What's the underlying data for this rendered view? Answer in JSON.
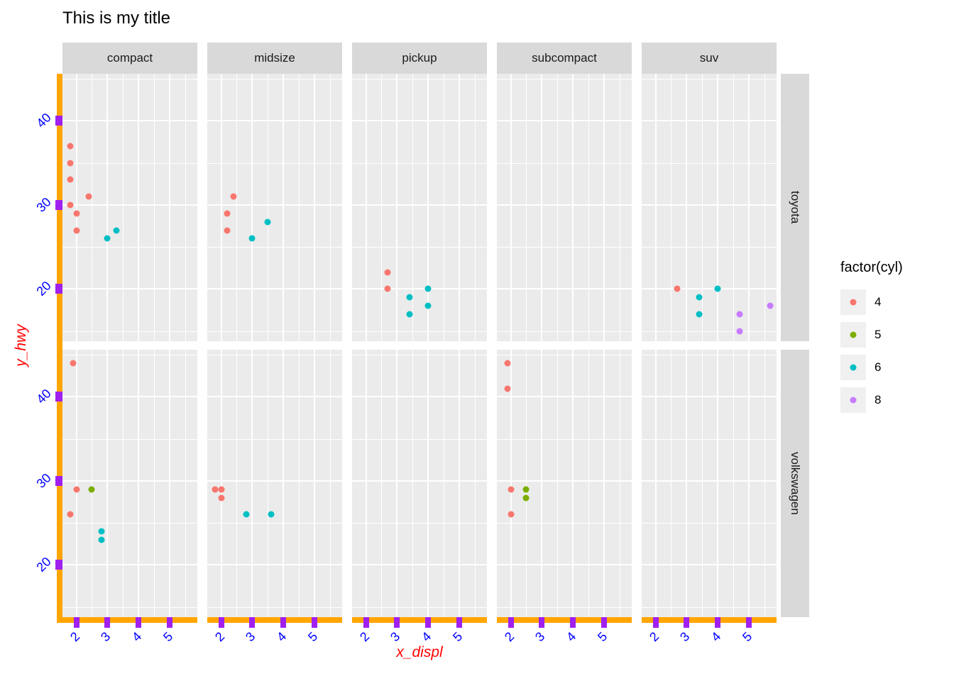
{
  "title": "This is my title",
  "axes": {
    "x_title": "x_displ",
    "y_title": "y_hwy",
    "x_tick_labels": [
      "2",
      "3",
      "4",
      "5"
    ],
    "y_tick_labels": [
      "20",
      "30",
      "40"
    ]
  },
  "legend": {
    "title": "factor(cyl)",
    "entries": [
      {
        "label": "4",
        "color": "#F8766D"
      },
      {
        "label": "5",
        "color": "#7CAE00"
      },
      {
        "label": "6",
        "color": "#00BFC4"
      },
      {
        "label": "8",
        "color": "#C77CFF"
      }
    ]
  },
  "style": {
    "axis_line_color": "#FFA500",
    "tick_color": "#A020F0",
    "tick_label_color": "#0000FF",
    "axis_title_color": "#FF0000",
    "panel_bg": "#EBEBEB",
    "strip_bg": "#D9D9D9",
    "key_bg": "#F0F0F0"
  },
  "chart_data": {
    "type": "scatter",
    "title": "This is my title",
    "xlabel": "x_displ",
    "ylabel": "y_hwy",
    "legend_title": "factor(cyl)",
    "facet_cols": [
      "compact",
      "midsize",
      "pickup",
      "subcompact",
      "suv"
    ],
    "facet_rows": [
      "toyota",
      "volkswagen"
    ],
    "x_domain": [
      1.55,
      5.9
    ],
    "y_domain": [
      13.8,
      45.6
    ],
    "x_major": [
      2,
      3,
      4,
      5
    ],
    "x_minor": [
      2.5,
      3.5,
      4.5,
      5.5
    ],
    "y_major": [
      20,
      30,
      40
    ],
    "y_minor": [
      15,
      25,
      35,
      45
    ],
    "points": [
      {
        "row": "toyota",
        "col": "compact",
        "cyl": "4",
        "x": 1.8,
        "y": 37
      },
      {
        "row": "toyota",
        "col": "compact",
        "cyl": "4",
        "x": 1.8,
        "y": 35
      },
      {
        "row": "toyota",
        "col": "compact",
        "cyl": "4",
        "x": 1.8,
        "y": 33
      },
      {
        "row": "toyota",
        "col": "compact",
        "cyl": "4",
        "x": 1.8,
        "y": 30
      },
      {
        "row": "toyota",
        "col": "compact",
        "cyl": "4",
        "x": 2.4,
        "y": 31
      },
      {
        "row": "toyota",
        "col": "compact",
        "cyl": "4",
        "x": 2.0,
        "y": 29
      },
      {
        "row": "toyota",
        "col": "compact",
        "cyl": "4",
        "x": 2.0,
        "y": 27
      },
      {
        "row": "toyota",
        "col": "compact",
        "cyl": "6",
        "x": 3.0,
        "y": 26
      },
      {
        "row": "toyota",
        "col": "compact",
        "cyl": "6",
        "x": 3.3,
        "y": 27
      },
      {
        "row": "toyota",
        "col": "midsize",
        "cyl": "4",
        "x": 2.4,
        "y": 31
      },
      {
        "row": "toyota",
        "col": "midsize",
        "cyl": "4",
        "x": 2.2,
        "y": 29
      },
      {
        "row": "toyota",
        "col": "midsize",
        "cyl": "4",
        "x": 2.2,
        "y": 27
      },
      {
        "row": "toyota",
        "col": "midsize",
        "cyl": "6",
        "x": 3.0,
        "y": 26
      },
      {
        "row": "toyota",
        "col": "midsize",
        "cyl": "6",
        "x": 3.5,
        "y": 28
      },
      {
        "row": "toyota",
        "col": "pickup",
        "cyl": "4",
        "x": 2.7,
        "y": 22
      },
      {
        "row": "toyota",
        "col": "pickup",
        "cyl": "4",
        "x": 2.7,
        "y": 20
      },
      {
        "row": "toyota",
        "col": "pickup",
        "cyl": "6",
        "x": 3.4,
        "y": 19
      },
      {
        "row": "toyota",
        "col": "pickup",
        "cyl": "6",
        "x": 3.4,
        "y": 17
      },
      {
        "row": "toyota",
        "col": "pickup",
        "cyl": "6",
        "x": 4.0,
        "y": 20
      },
      {
        "row": "toyota",
        "col": "pickup",
        "cyl": "6",
        "x": 4.0,
        "y": 18
      },
      {
        "row": "toyota",
        "col": "suv",
        "cyl": "4",
        "x": 2.7,
        "y": 20
      },
      {
        "row": "toyota",
        "col": "suv",
        "cyl": "6",
        "x": 3.4,
        "y": 19
      },
      {
        "row": "toyota",
        "col": "suv",
        "cyl": "6",
        "x": 3.4,
        "y": 17
      },
      {
        "row": "toyota",
        "col": "suv",
        "cyl": "6",
        "x": 4.0,
        "y": 20
      },
      {
        "row": "toyota",
        "col": "suv",
        "cyl": "8",
        "x": 4.7,
        "y": 17
      },
      {
        "row": "toyota",
        "col": "suv",
        "cyl": "8",
        "x": 4.7,
        "y": 15
      },
      {
        "row": "toyota",
        "col": "suv",
        "cyl": "8",
        "x": 5.7,
        "y": 18
      },
      {
        "row": "volkswagen",
        "col": "compact",
        "cyl": "4",
        "x": 1.9,
        "y": 44
      },
      {
        "row": "volkswagen",
        "col": "compact",
        "cyl": "4",
        "x": 2.0,
        "y": 29
      },
      {
        "row": "volkswagen",
        "col": "compact",
        "cyl": "4",
        "x": 1.8,
        "y": 26
      },
      {
        "row": "volkswagen",
        "col": "compact",
        "cyl": "5",
        "x": 2.5,
        "y": 29
      },
      {
        "row": "volkswagen",
        "col": "compact",
        "cyl": "6",
        "x": 2.8,
        "y": 24
      },
      {
        "row": "volkswagen",
        "col": "compact",
        "cyl": "6",
        "x": 2.8,
        "y": 23
      },
      {
        "row": "volkswagen",
        "col": "midsize",
        "cyl": "4",
        "x": 1.8,
        "y": 29
      },
      {
        "row": "volkswagen",
        "col": "midsize",
        "cyl": "4",
        "x": 2.0,
        "y": 29
      },
      {
        "row": "volkswagen",
        "col": "midsize",
        "cyl": "4",
        "x": 2.0,
        "y": 28
      },
      {
        "row": "volkswagen",
        "col": "midsize",
        "cyl": "6",
        "x": 2.8,
        "y": 26
      },
      {
        "row": "volkswagen",
        "col": "midsize",
        "cyl": "6",
        "x": 3.6,
        "y": 26
      },
      {
        "row": "volkswagen",
        "col": "subcompact",
        "cyl": "4",
        "x": 1.9,
        "y": 44
      },
      {
        "row": "volkswagen",
        "col": "subcompact",
        "cyl": "4",
        "x": 1.9,
        "y": 41
      },
      {
        "row": "volkswagen",
        "col": "subcompact",
        "cyl": "4",
        "x": 2.0,
        "y": 29
      },
      {
        "row": "volkswagen",
        "col": "subcompact",
        "cyl": "4",
        "x": 2.0,
        "y": 26
      },
      {
        "row": "volkswagen",
        "col": "subcompact",
        "cyl": "5",
        "x": 2.5,
        "y": 29
      },
      {
        "row": "volkswagen",
        "col": "subcompact",
        "cyl": "5",
        "x": 2.5,
        "y": 28
      }
    ]
  }
}
